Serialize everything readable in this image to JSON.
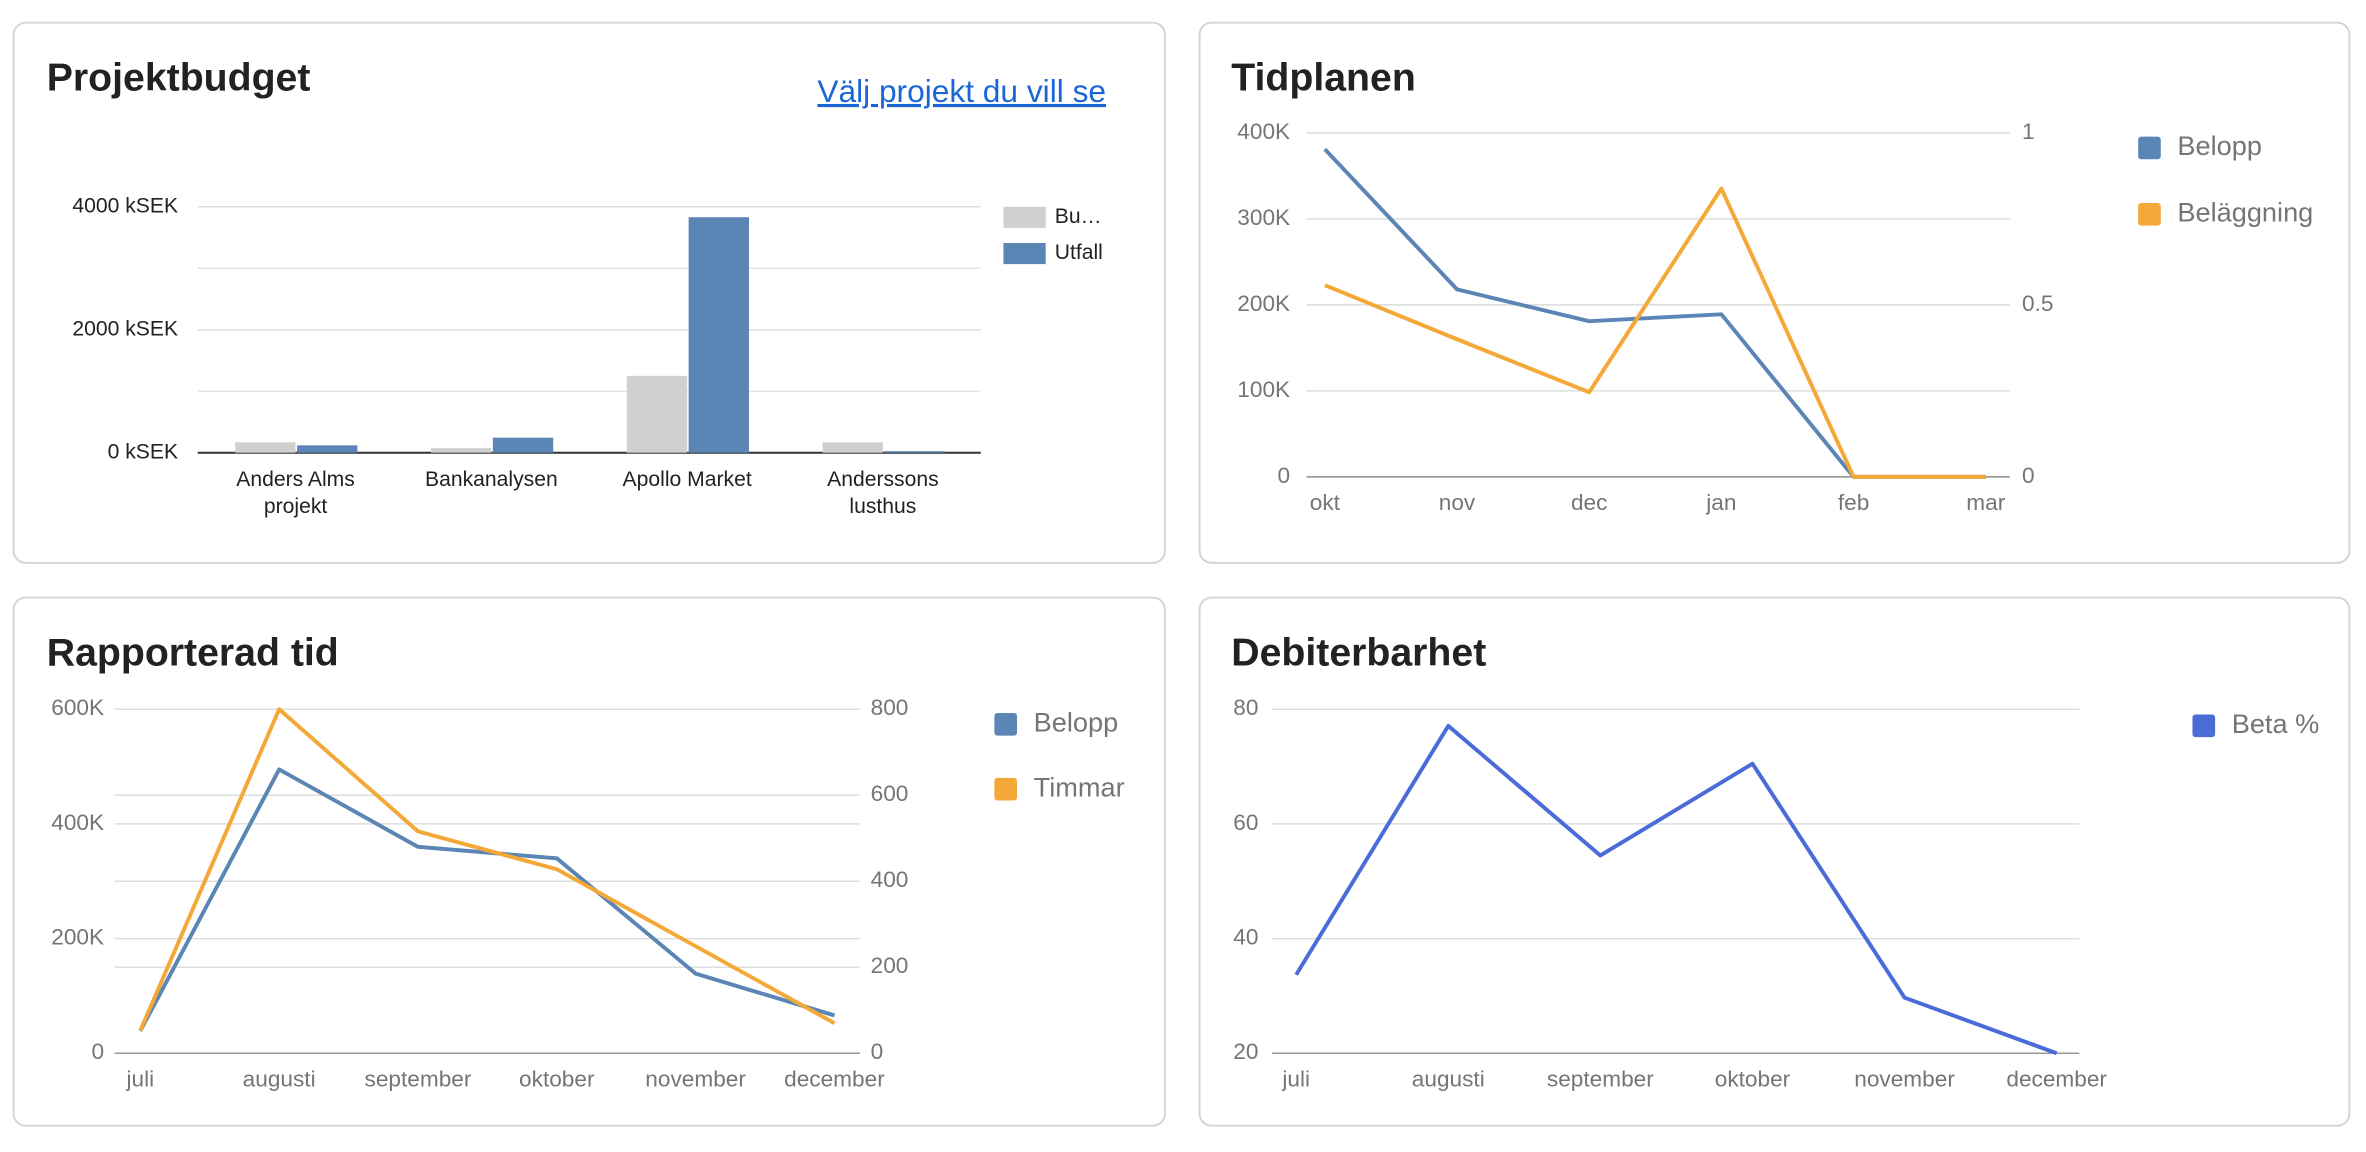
{
  "project_link": "Välj projekt du vill se",
  "chart_data": [
    {
      "type": "bar",
      "title": "Projektbudget",
      "categories": [
        "Anders Alms projekt",
        "Bankanalysen",
        "Apollo Market",
        "Anderssons lusthus"
      ],
      "series": [
        {
          "name": "Bu…",
          "color": "#d0d0d0",
          "values": [
            170,
            75,
            1250,
            170
          ]
        },
        {
          "name": "Utfall",
          "color": "#5a85b5",
          "values": [
            120,
            245,
            3830,
            25
          ]
        }
      ],
      "ylim": [
        0,
        4000
      ],
      "yticks": [
        {
          "value": 0,
          "label": "0 kSEK"
        },
        {
          "value": 2000,
          "label": "2000 kSEK"
        },
        {
          "value": 4000,
          "label": "4000 kSEK"
        }
      ],
      "minor_gridlines": [
        1000,
        3000
      ],
      "grid": true
    },
    {
      "type": "line",
      "title": "Tidplanen",
      "categories": [
        "okt",
        "nov",
        "dec",
        "jan",
        "feb",
        "mar"
      ],
      "series": [
        {
          "name": "Belopp",
          "color": "#5a85b5",
          "values": [
            381000,
            218000,
            181000,
            189000,
            0,
            0
          ]
        },
        {
          "name": "Beläggning",
          "color": "#f4a838",
          "axis": "y2",
          "values": [
            0.557,
            0.4,
            0.246,
            0.838,
            0,
            0
          ]
        }
      ],
      "ylim": [
        0,
        400000
      ],
      "yticks": [
        0,
        {
          "value": 100000,
          "label": "100K"
        },
        {
          "value": 200000,
          "label": "200K"
        },
        {
          "value": 300000,
          "label": "300K"
        },
        {
          "value": 400000,
          "label": "400K"
        }
      ],
      "y2lim": [
        0,
        1
      ],
      "y2ticks": [
        0,
        0.5,
        1
      ],
      "grid": true
    },
    {
      "type": "line",
      "title": "Rapporterad tid",
      "categories": [
        "juli",
        "augusti",
        "september",
        "oktober",
        "november",
        "december"
      ],
      "series": [
        {
          "name": "Belopp",
          "color": "#5a85b5",
          "values": [
            39000,
            495000,
            360000,
            340000,
            139000,
            66000
          ]
        },
        {
          "name": "Timmar",
          "color": "#f4a838",
          "axis": "y2",
          "values": [
            53,
            800,
            516,
            428,
            249,
            70
          ]
        }
      ],
      "ylim": [
        0,
        600000
      ],
      "yticks": [
        0,
        {
          "value": 200000,
          "label": "200K"
        },
        {
          "value": 400000,
          "label": "400K"
        },
        {
          "value": 600000,
          "label": "600K"
        }
      ],
      "y2lim": [
        0,
        800
      ],
      "y2ticks": [
        0,
        200,
        400,
        600,
        800
      ],
      "grid": true
    },
    {
      "type": "line",
      "title": "Debiterbarhet",
      "categories": [
        "juli",
        "augusti",
        "september",
        "oktober",
        "november",
        "december"
      ],
      "series": [
        {
          "name": "Beta %",
          "color": "#4a6bd8",
          "values": [
            33.7,
            77.1,
            54.5,
            70.5,
            29.7,
            20
          ]
        }
      ],
      "ylim": [
        20,
        80
      ],
      "yticks": [
        20,
        40,
        60,
        80
      ],
      "grid": true
    }
  ]
}
